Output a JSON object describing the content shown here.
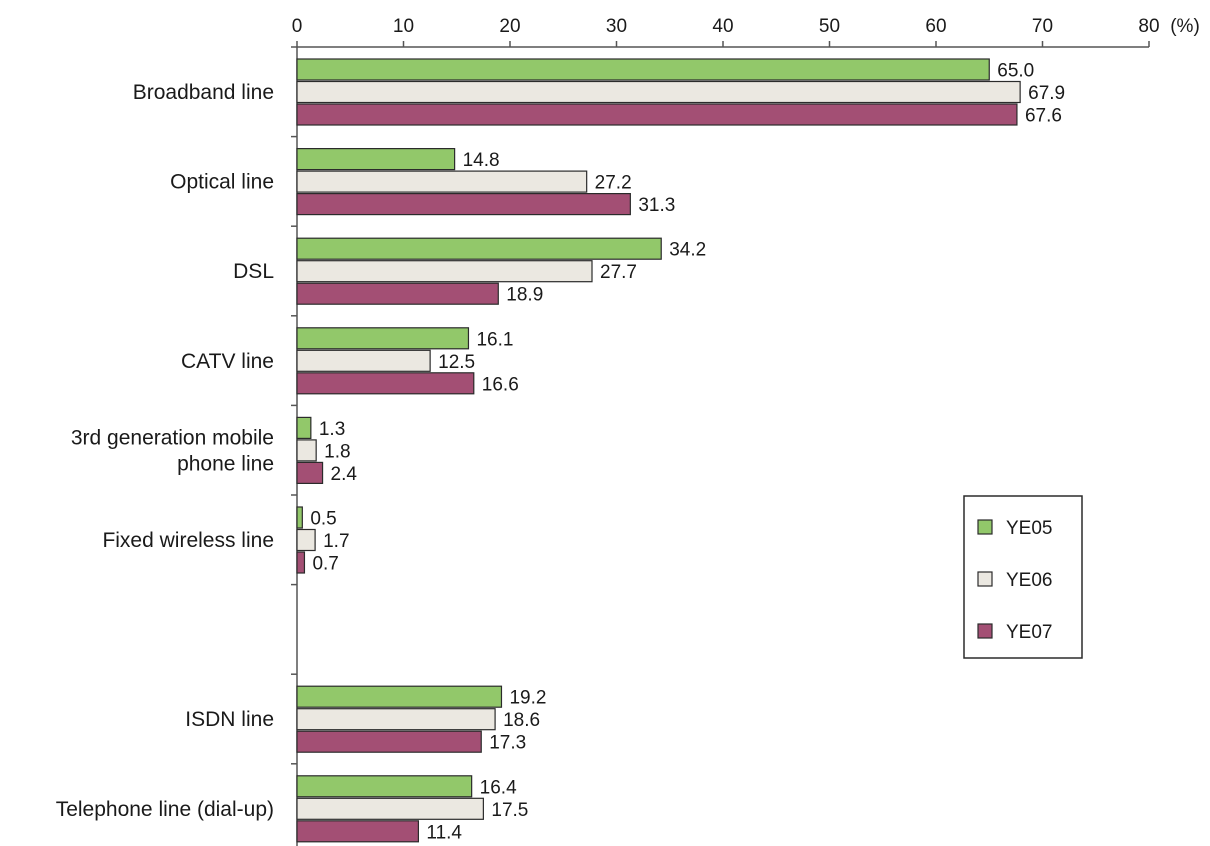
{
  "chart_data": {
    "type": "bar",
    "orientation": "horizontal",
    "unit": "(%)",
    "xlim": [
      0,
      80
    ],
    "ticks": [
      "0",
      "10",
      "20",
      "30",
      "40",
      "50",
      "60",
      "70",
      "80"
    ],
    "tick_values": [
      0,
      10,
      20,
      30,
      40,
      50,
      60,
      70,
      80
    ],
    "axis_position": "top",
    "grid": false,
    "legend_position": "right",
    "categories": [
      "Broadband line",
      "Optical line",
      "DSL",
      "CATV line",
      "3rd generation mobile phone line",
      "Fixed wireless line",
      "",
      "ISDN line",
      "Telephone line (dial-up)"
    ],
    "category_lines": [
      [
        "Broadband line"
      ],
      [
        "Optical line"
      ],
      [
        "DSL"
      ],
      [
        "CATV line"
      ],
      [
        "3rd generation mobile",
        "phone line"
      ],
      [
        "Fixed wireless line"
      ],
      [],
      [
        "ISDN line"
      ],
      [
        "Telephone line (dial-up)"
      ]
    ],
    "series": [
      {
        "name": "YE05",
        "color": "#92c86a",
        "values": [
          65.0,
          14.8,
          34.2,
          16.1,
          1.3,
          0.5,
          null,
          19.2,
          16.4
        ],
        "labels": [
          "65.0",
          "14.8",
          "34.2",
          "16.1",
          "1.3",
          "0.5",
          "",
          "19.2",
          "16.4"
        ]
      },
      {
        "name": "YE06",
        "color": "#ebe8e1",
        "values": [
          67.9,
          27.2,
          27.7,
          12.5,
          1.8,
          1.7,
          null,
          18.6,
          17.5
        ],
        "labels": [
          "67.9",
          "27.2",
          "27.7",
          "12.5",
          "1.8",
          "1.7",
          "",
          "18.6",
          "17.5"
        ]
      },
      {
        "name": "YE07",
        "color": "#a34f74",
        "values": [
          67.6,
          31.3,
          18.9,
          16.6,
          2.4,
          0.7,
          null,
          17.3,
          11.4
        ],
        "labels": [
          "67.6",
          "31.3",
          "18.9",
          "16.6",
          "2.4",
          "0.7",
          "",
          "17.3",
          "11.4"
        ]
      }
    ]
  }
}
